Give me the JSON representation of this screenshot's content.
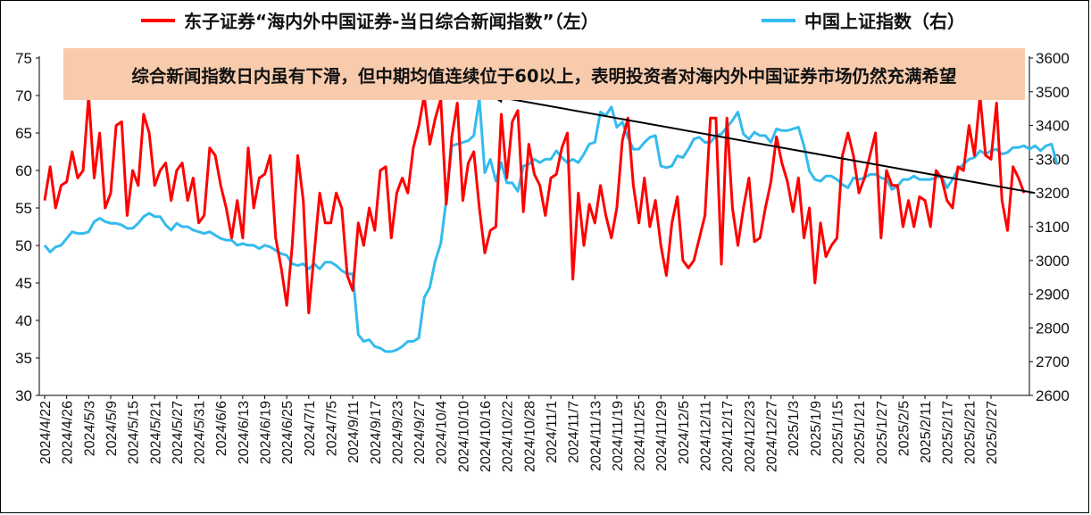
{
  "legend": {
    "left_series_label": "东子证券“海内外中国证券-当日综合新闻指数”（左）",
    "right_series_label": "中国上证指数（右）"
  },
  "banner": {
    "text": "综合新闻指数日内虽有下滑，但中期均值连续位于60以上，表明投资者对海内外中国证券市场仍然充满希望"
  },
  "colors": {
    "news_index": "#FF0000",
    "sse_index": "#33BBEE",
    "banner_bg": "#F8CBAD",
    "trend_line": "#000000"
  },
  "chart_data": {
    "type": "line",
    "title": "",
    "y_left": {
      "range": [
        30,
        75
      ],
      "ticks": [
        30,
        35,
        40,
        45,
        50,
        55,
        60,
        65,
        70,
        75
      ]
    },
    "y_right": {
      "range": [
        2600,
        3600
      ],
      "ticks": [
        2600,
        2700,
        2800,
        2900,
        3000,
        3100,
        3200,
        3300,
        3400,
        3500,
        3600
      ]
    },
    "x_tick_labels": [
      "2024/4/22",
      "2024/4/26",
      "2024/5/3",
      "2024/5/9",
      "2024/5/15",
      "2024/5/21",
      "2024/5/27",
      "2024/5/31",
      "2024/6/6",
      "2024/6/13",
      "2024/6/19",
      "2024/6/25",
      "2024/7/1",
      "2024/7/5",
      "2024/9/11",
      "2024/9/17",
      "2024/9/23",
      "2024/9/27",
      "2024/10/4",
      "2024/10/10",
      "2024/10/16",
      "2024/10/22",
      "2024/10/28",
      "2024/11/1",
      "2024/11/7",
      "2024/11/13",
      "2024/11/19",
      "2024/11/25",
      "2024/11/29",
      "2024/12/5",
      "2024/12/11",
      "2024/12/17",
      "2024/12/23",
      "2024/12/27",
      "2025/1/3",
      "2025/1/9",
      "2025/1/15",
      "2025/1/21",
      "2025/1/27",
      "2025/2/5",
      "2025/2/11",
      "2025/2/17",
      "2025/2/21",
      "2025/2/27"
    ],
    "series": [
      {
        "name": "东子证券“海内外中国证券-当日综合新闻指数”（左）",
        "axis": "left",
        "values": [
          56,
          60.5,
          55,
          58,
          58.5,
          62.5,
          59,
          60,
          70,
          59,
          65,
          55,
          57,
          66,
          66.5,
          54,
          60,
          58,
          67.5,
          65,
          58,
          60,
          61,
          56,
          60,
          61,
          56,
          59,
          53,
          54,
          63,
          62,
          58,
          55,
          51,
          56,
          51,
          63,
          55,
          59,
          59.5,
          62,
          51,
          47,
          42,
          50,
          62,
          56,
          41,
          49,
          57,
          53,
          53,
          57,
          55,
          46,
          44,
          53,
          50,
          55,
          52,
          60,
          60.5,
          51,
          57,
          59,
          57,
          63,
          66,
          70,
          63.5,
          67,
          69.5,
          55.5,
          64.5,
          69,
          56,
          61,
          62.5,
          55,
          49,
          52,
          52.5,
          67.5,
          59,
          66.5,
          68,
          54.5,
          63.5,
          59.5,
          58,
          54,
          59,
          59.5,
          63,
          65,
          45.5,
          57,
          50,
          55.5,
          53,
          58,
          54,
          51,
          55,
          64,
          67,
          58,
          53,
          59,
          52.5,
          56,
          50,
          46,
          53,
          56.5,
          48,
          47,
          48,
          51,
          54,
          67,
          67,
          47.5,
          67,
          55,
          50,
          55,
          59,
          50.5,
          51,
          55,
          58.5,
          64.5,
          61,
          58.5,
          54.5,
          59,
          51,
          55,
          45,
          53,
          48.5,
          50,
          51,
          62,
          65,
          62,
          57,
          59,
          62,
          65,
          51,
          60,
          58,
          58,
          52.5,
          56,
          52.5,
          56.5,
          56,
          52.5,
          60,
          59,
          56,
          55,
          60.5,
          60,
          66,
          62,
          70,
          62,
          61.5,
          69,
          56,
          52,
          60.5,
          59,
          57
        ]
      },
      {
        "name": "中国上证指数（右）",
        "axis": "right",
        "values": [
          3045,
          3025,
          3040,
          3045,
          3065,
          3085,
          3080,
          3080,
          3085,
          3115,
          3125,
          3115,
          3110,
          3110,
          3105,
          3095,
          3095,
          3110,
          3130,
          3140,
          3130,
          3130,
          3105,
          3090,
          3110,
          3100,
          3100,
          3090,
          3085,
          3080,
          3085,
          3075,
          3065,
          3060,
          3060,
          3045,
          3050,
          3045,
          3045,
          3035,
          3045,
          3040,
          3030,
          3020,
          3015,
          2990,
          2985,
          2990,
          2975,
          2990,
          2975,
          2995,
          2995,
          2985,
          2970,
          2960,
          2960,
          2780,
          2760,
          2765,
          2745,
          2740,
          2730,
          2730,
          2735,
          2745,
          2760,
          2760,
          2770,
          2890,
          2920,
          3000,
          3050,
          3180,
          3340,
          3345,
          3350,
          3355,
          3370,
          3480,
          3260,
          3300,
          3235,
          3290,
          3230,
          3230,
          3205,
          3280,
          3285,
          3300,
          3290,
          3300,
          3300,
          3325,
          3305,
          3290,
          3300,
          3290,
          3315,
          3345,
          3350,
          3440,
          3430,
          3455,
          3395,
          3410,
          3365,
          3330,
          3330,
          3350,
          3365,
          3370,
          3280,
          3275,
          3280,
          3310,
          3305,
          3330,
          3360,
          3365,
          3350,
          3350,
          3370,
          3375,
          3395,
          3415,
          3440,
          3375,
          3360,
          3380,
          3370,
          3370,
          3350,
          3390,
          3385,
          3385,
          3390,
          3395,
          3340,
          3265,
          3240,
          3235,
          3250,
          3250,
          3240,
          3225,
          3215,
          3245,
          3240,
          3245,
          3255,
          3255,
          3245,
          3240,
          3210,
          3220,
          3240,
          3240,
          3250,
          3240,
          3240,
          3240,
          3245,
          3250,
          3215,
          3240,
          3270,
          3285,
          3300,
          3305,
          3325,
          3315,
          3325,
          3330,
          3315,
          3320,
          3335,
          3335,
          3340,
          3330,
          3340,
          3325,
          3340,
          3345,
          3285
        ]
      }
    ],
    "annotation": {
      "type": "trend-arrow",
      "start": {
        "index": 81,
        "value": 70
      },
      "end": {
        "index": 180,
        "value": 57
      }
    },
    "grid": false,
    "legend_position": "top"
  }
}
